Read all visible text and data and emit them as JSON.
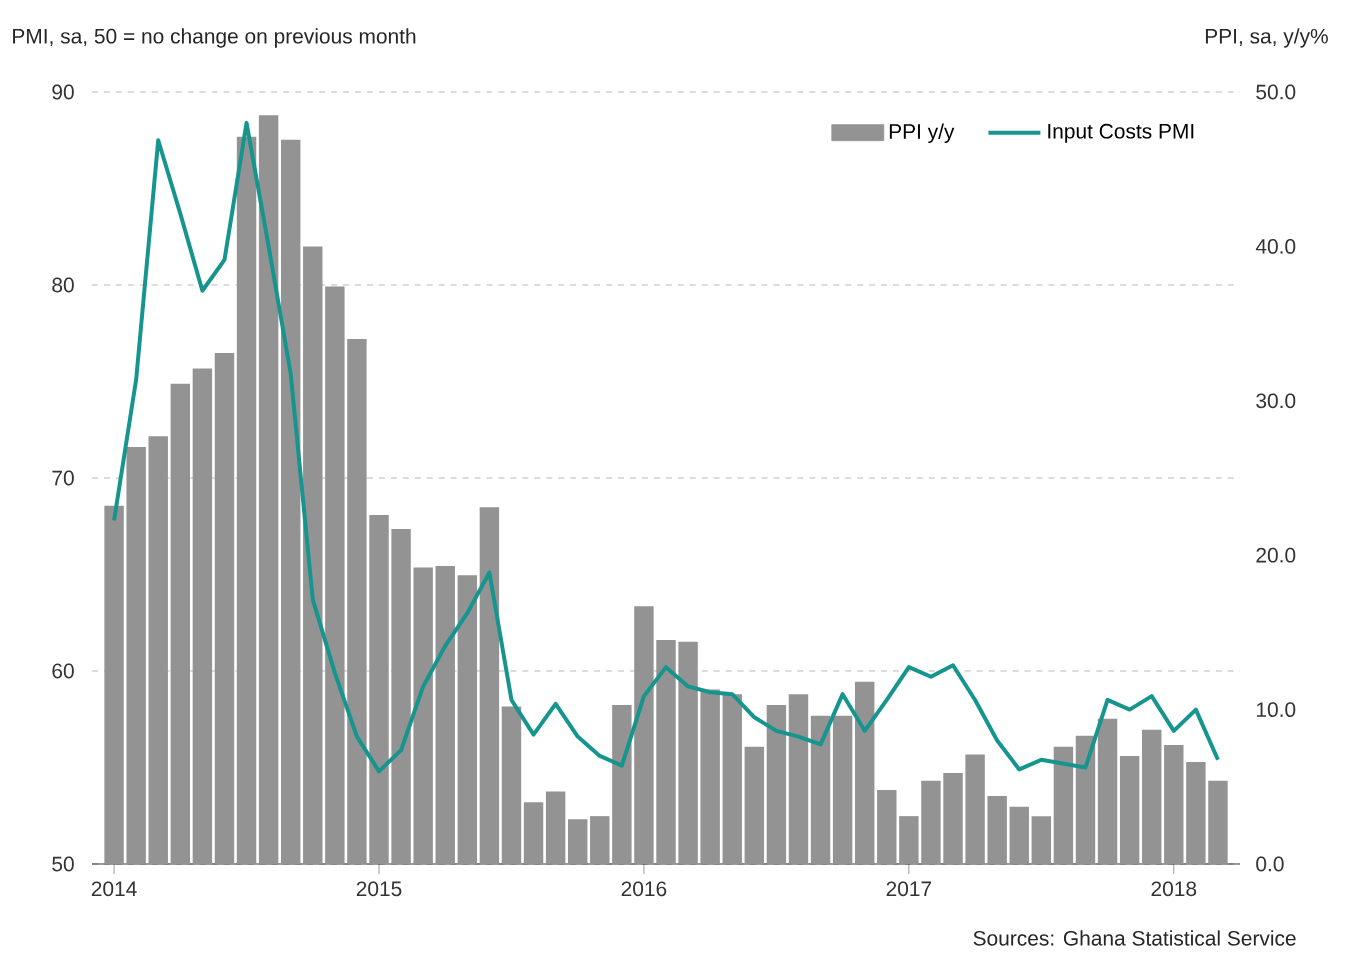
{
  "chart_data": {
    "type": "bar",
    "ylabel": "PMI, sa, 50 = no change on previous month",
    "y2label": "PPI, sa, y/y%",
    "annotations": [
      "Sources: Ghana Statistical Service"
    ],
    "x": [
      "2014-01",
      "2014-02",
      "2014-03",
      "2014-04",
      "2014-05",
      "2014-06",
      "2014-07",
      "2014-08",
      "2014-09",
      "2014-10",
      "2014-11",
      "2014-12",
      "2015-01",
      "2015-02",
      "2015-03",
      "2015-04",
      "2015-05",
      "2015-06",
      "2015-07",
      "2015-08",
      "2015-09",
      "2015-10",
      "2015-11",
      "2015-12",
      "2016-01",
      "2016-02",
      "2016-03",
      "2016-04",
      "2016-05",
      "2016-06",
      "2016-07",
      "2016-08",
      "2016-09",
      "2016-10",
      "2016-11",
      "2016-12",
      "2017-01",
      "2017-02",
      "2017-03",
      "2017-04",
      "2017-05",
      "2017-06",
      "2017-07",
      "2017-08",
      "2017-09",
      "2017-10",
      "2017-11",
      "2017-12",
      "2018-01",
      "2018-02",
      "2018-03"
    ],
    "series": [
      {
        "name": "PPI y/y",
        "axis": "y2",
        "color": "#939393",
        "values": [
          23.2,
          27.0,
          27.7,
          31.1,
          32.1,
          33.1,
          47.1,
          48.5,
          46.9,
          40.0,
          37.4,
          34.0,
          22.6,
          21.7,
          19.2,
          19.3,
          18.7,
          23.1,
          10.2,
          4.0,
          4.7,
          2.9,
          3.1,
          10.3,
          16.7,
          14.5,
          14.4,
          11.3,
          11.0,
          7.6,
          10.3,
          11.0,
          9.6,
          9.6,
          11.8,
          4.8,
          3.1,
          5.4,
          5.9,
          7.1,
          4.4,
          3.7,
          3.1,
          7.6,
          8.3,
          9.4,
          7.0,
          8.7,
          7.7,
          6.6,
          5.4
        ]
      },
      {
        "name": "Input Costs PMI",
        "type": "line",
        "color": "#16958e",
        "values": [
          67.8,
          75.1,
          87.5,
          83.7,
          79.7,
          81.3,
          88.4,
          82.0,
          75.4,
          63.7,
          59.9,
          56.6,
          54.8,
          55.9,
          59.2,
          61.3,
          63.0,
          65.1,
          58.5,
          56.7,
          58.3,
          56.6,
          55.6,
          55.1,
          58.7,
          60.2,
          59.2,
          58.9,
          58.8,
          57.6,
          56.9,
          56.6,
          56.2,
          58.8,
          56.9,
          58.5,
          60.2,
          59.7,
          60.3,
          58.5,
          56.4,
          54.9,
          55.4,
          55.2,
          55.0,
          58.5,
          58.0,
          58.7,
          56.9,
          58.0,
          55.4
        ]
      }
    ],
    "xlim": [
      "2013-12",
      "2018-04"
    ],
    "xticks": [
      "2014",
      "2015",
      "2016",
      "2017",
      "2018"
    ],
    "ylim": [
      50,
      90
    ],
    "yticks": [
      50,
      60,
      70,
      80,
      90
    ],
    "y2lim": [
      0,
      50
    ],
    "y2ticks": [
      {
        "value": 0,
        "label": "0.0"
      },
      {
        "value": 10,
        "label": "10.0"
      },
      {
        "value": 20,
        "label": "20.0"
      },
      {
        "value": 30,
        "label": "30.0"
      },
      {
        "value": 40,
        "label": "40.0"
      },
      {
        "value": 50,
        "label": "50.0"
      }
    ],
    "grid": "y",
    "legend": "top right"
  }
}
